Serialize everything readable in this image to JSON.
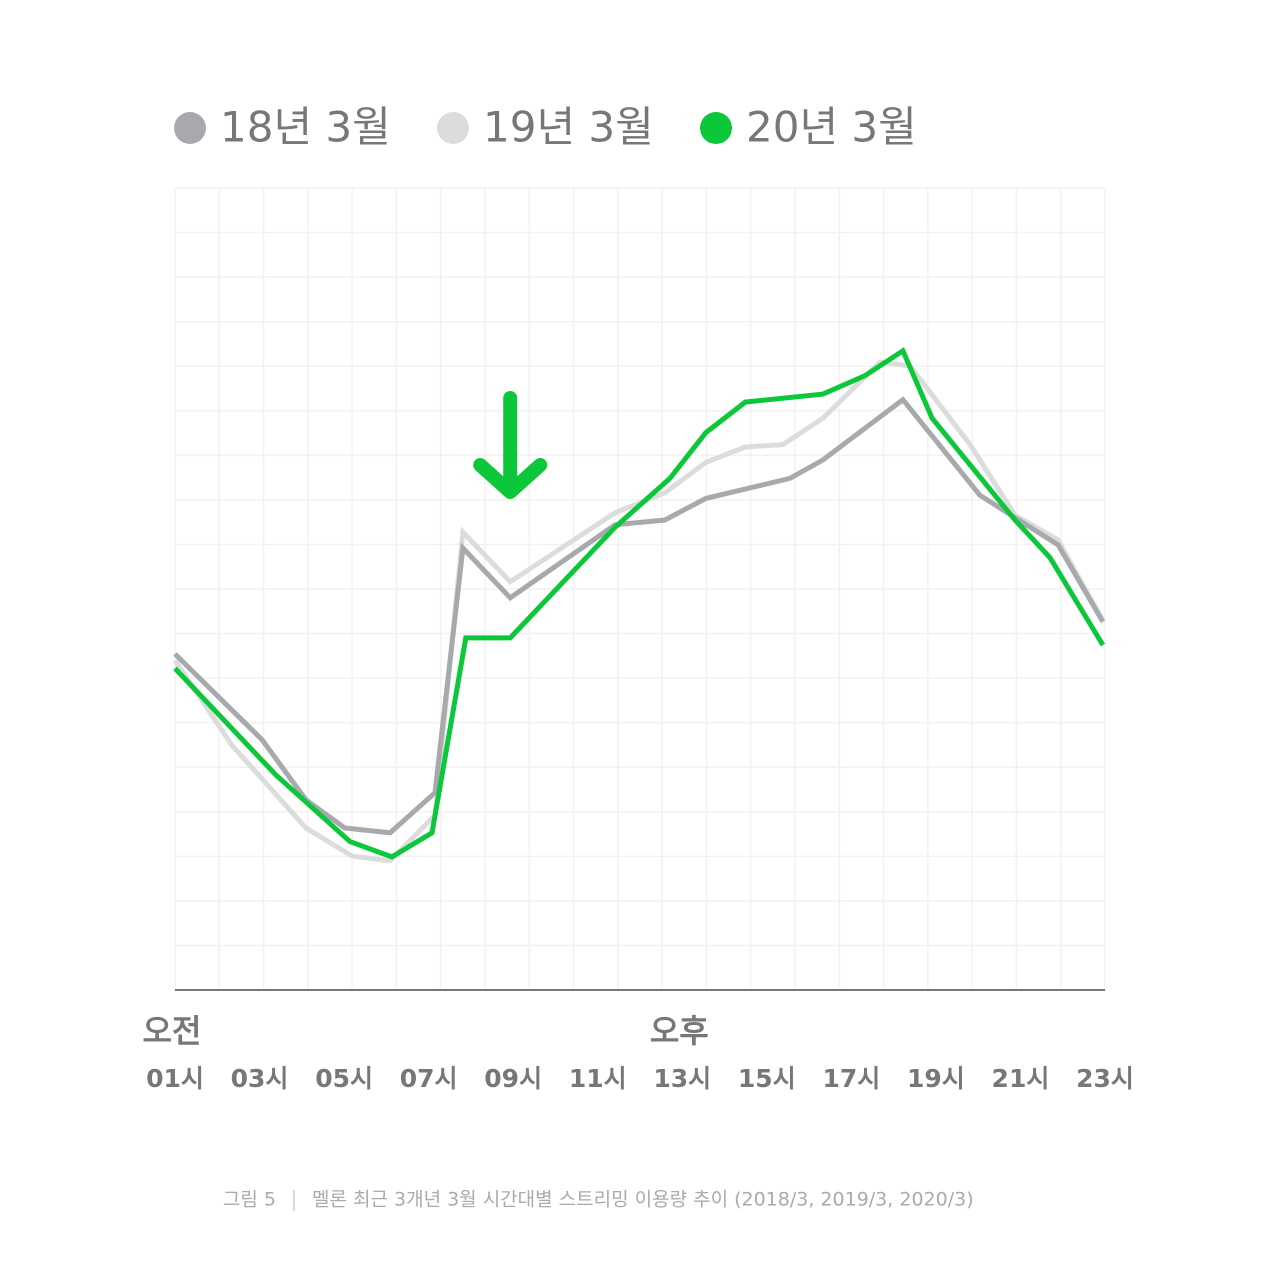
{
  "chart_data": {
    "type": "line",
    "caption": {
      "label": "그림 5",
      "text": "멜론 최근 3개년 3월 시간대별 스트리밍 이용량 추이 (2018/3, 2019/3, 2020/3)"
    },
    "periods": [
      {
        "value": 1,
        "label": "오전"
      },
      {
        "value": 13,
        "label": "오후"
      }
    ],
    "xlim": [
      1,
      23
    ],
    "xticks": [
      {
        "value": 1,
        "label": "01시"
      },
      {
        "value": 3,
        "label": "03시"
      },
      {
        "value": 5,
        "label": "05시"
      },
      {
        "value": 7,
        "label": "07시"
      },
      {
        "value": 9,
        "label": "09시"
      },
      {
        "value": 11,
        "label": "11시"
      },
      {
        "value": 13,
        "label": "13시"
      },
      {
        "value": 15,
        "label": "15시"
      },
      {
        "value": 17,
        "label": "17시"
      },
      {
        "value": 19,
        "label": "19시"
      },
      {
        "value": 21,
        "label": "21시"
      },
      {
        "value": 23,
        "label": "23시"
      }
    ],
    "ylim": [
      0,
      100
    ],
    "grid": true,
    "annotation_arrow": {
      "x": 8.93,
      "color": "#0dc73a"
    },
    "series": [
      {
        "name": "18년 3월",
        "color": "#a8a9ad",
        "x": [
          1,
          3.06,
          4.1,
          5.02,
          6.09,
          7.15,
          7.81,
          8.93,
          11.41,
          12.59,
          13.56,
          15.55,
          16.33,
          18.22,
          20.04,
          20.87,
          21.89,
          22.95
        ],
        "values": [
          41.9,
          31.2,
          23.7,
          20.2,
          19.6,
          24.6,
          55.1,
          48.9,
          58.0,
          58.6,
          61.3,
          63.8,
          66.1,
          73.6,
          61.7,
          58.9,
          55.5,
          45.9
        ]
      },
      {
        "name": "19년 3월",
        "color": "#dcdcdc",
        "x": [
          1,
          2.35,
          4.1,
          5.19,
          6.09,
          7.15,
          7.81,
          8.93,
          11.41,
          12.59,
          13.56,
          14.49,
          15.38,
          16.33,
          17.68,
          18.39,
          19.81,
          20.87,
          21.89,
          22.95
        ],
        "values": [
          41.1,
          30.5,
          20.2,
          16.7,
          16.1,
          21.8,
          57.1,
          50.9,
          59.5,
          62.0,
          65.8,
          67.7,
          68.0,
          71.3,
          78.3,
          77.8,
          68.0,
          59.2,
          56.1,
          46.1
        ]
      },
      {
        "name": "20년 3월",
        "color": "#0dc73a",
        "x": [
          1,
          3.39,
          5.14,
          6.13,
          7.08,
          7.88,
          8.93,
          11.41,
          12.71,
          13.56,
          14.49,
          16.33,
          17.32,
          18.22,
          18.91,
          20.87,
          21.7,
          22.95
        ],
        "values": [
          40.1,
          26.8,
          18.5,
          16.6,
          19.6,
          43.9,
          43.9,
          57.7,
          63.8,
          69.5,
          73.3,
          74.3,
          76.6,
          79.7,
          71.3,
          58.6,
          53.9,
          43.0
        ]
      }
    ]
  }
}
